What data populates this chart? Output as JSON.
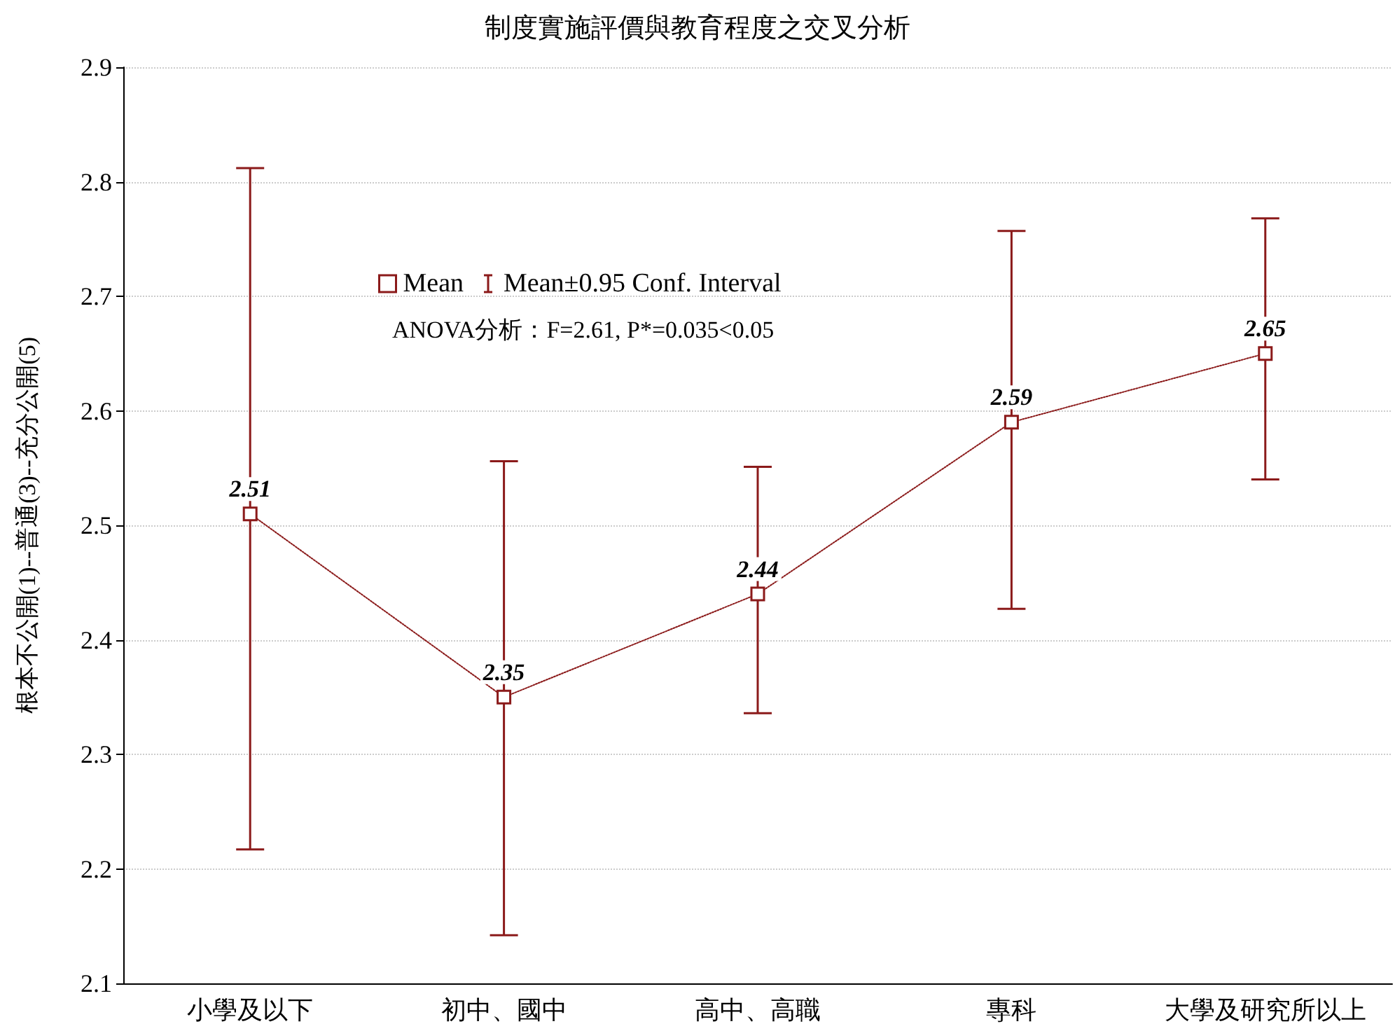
{
  "chart_data": {
    "type": "line",
    "title": "制度實施評價與教育程度之交叉分析",
    "ylabel": "根本不公開(1)--普通(3)--充分公開(5)",
    "categories": [
      "小學及以下",
      "初中、國中",
      "高中、高職",
      "專科",
      "大學及研究所以上"
    ],
    "series": [
      {
        "name": "Mean",
        "color": "#8b1a1a",
        "values": [
          2.51,
          2.35,
          2.44,
          2.59,
          2.65
        ],
        "errors": [
          [
            2.217,
            2.812
          ],
          [
            2.142,
            2.556
          ],
          [
            2.336,
            2.551
          ],
          [
            2.427,
            2.757
          ],
          [
            2.54,
            2.768
          ]
        ]
      }
    ],
    "annotations": [
      "Mean±0.95 Conf. Interval",
      "ANOVA分析：F=2.61, P*=0.035<0.05"
    ],
    "ylim": [
      2.1,
      2.9
    ],
    "yticks": [
      2.1,
      2.2,
      2.3,
      2.4,
      2.5,
      2.6,
      2.7,
      2.8,
      2.9
    ],
    "grid": "y",
    "legend": "top left",
    "marker": "square",
    "line_style": "dotted",
    "data_labels": true
  }
}
